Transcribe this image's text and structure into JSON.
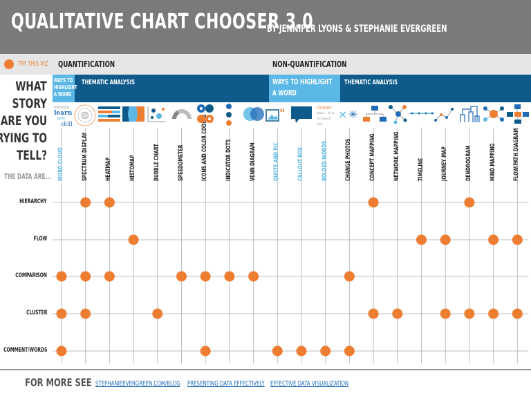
{
  "header": {
    "title": "QUALITATIVE CHART CHOOSER 3.0",
    "subtitle": "BY JENNIFER LYONS & STEPHANIE EVERGREEN"
  },
  "legend": {
    "label": "TRY THIS VIZ"
  },
  "sections": {
    "quant": "QUANTIFICATION",
    "nonquant": "NON-QUANTIFICATION"
  },
  "bands": {
    "ways1": "WAYS TO HIGHLIGHT A WORD",
    "thematic1": "THEMATIC ANALYSIS",
    "ways2": "WAYS TO HIGHLIGHT A WORD",
    "thematic2": "THEMATIC ANALYSIS"
  },
  "question": [
    "WHAT",
    "STORY",
    "ARE YOU",
    "TRYING TO",
    "TELL?"
  ],
  "data_are": "THE DATA ARE...",
  "icon_texts": {
    "wordcloud": [
      "elevate",
      "learn",
      "new",
      "skill"
    ],
    "bolded": [
      "clover",
      "data.. It is",
      "so much",
      "fun"
    ]
  },
  "columns": [
    {
      "label": "WORD CLOUD",
      "color": "#5bb8e6"
    },
    {
      "label": "SPECTRUM DISPLAY",
      "color": "#222222"
    },
    {
      "label": "HEATMAP",
      "color": "#222222"
    },
    {
      "label": "HISTOMAP",
      "color": "#222222"
    },
    {
      "label": "BUBBLE CHART",
      "color": "#222222"
    },
    {
      "label": "SPEEDOMETER",
      "color": "#222222"
    },
    {
      "label": "ICONS AND COLOR CODING",
      "color": "#222222"
    },
    {
      "label": "INDICATOR DOTS",
      "color": "#222222"
    },
    {
      "label": "VENN DIAGRAM",
      "color": "#222222"
    },
    {
      "label": "QUOTE AND PIC",
      "color": "#5bb8e6"
    },
    {
      "label": "CALLOUT BOX",
      "color": "#5bb8e6"
    },
    {
      "label": "BOLDED WORDS",
      "color": "#5bb8e6"
    },
    {
      "label": "CHANGE PHOTOS",
      "color": "#222222"
    },
    {
      "label": "CONCEPT MAPPING",
      "color": "#222222"
    },
    {
      "label": "NETWORK MAPPING",
      "color": "#222222"
    },
    {
      "label": "TIMELINE",
      "color": "#222222"
    },
    {
      "label": "JOURNEY MAP",
      "color": "#222222"
    },
    {
      "label": "DENDROGRAM",
      "color": "#222222"
    },
    {
      "label": "MIND MAPPING",
      "color": "#222222"
    },
    {
      "label": "FLOW/PATH DIAGRAM",
      "color": "#222222"
    }
  ],
  "rows": [
    {
      "label": "HIERARCHY",
      "cols": [
        1,
        2,
        13,
        17
      ]
    },
    {
      "label": "FLOW",
      "cols": [
        3,
        15,
        16,
        18,
        19
      ]
    },
    {
      "label": "COMPARISON",
      "cols": [
        0,
        1,
        2,
        5,
        6,
        7,
        8,
        12
      ]
    },
    {
      "label": "CLUSTER",
      "cols": [
        0,
        1,
        4,
        13,
        14,
        16,
        17,
        18,
        19
      ]
    },
    {
      "label": "COMMENT/WORDS",
      "cols": [
        0,
        6,
        9,
        10,
        11,
        12
      ]
    }
  ],
  "colors": {
    "dot": "#ed7d31",
    "header": "#7a7a7a",
    "light_blue": "#5bb8e6",
    "dark_blue": "#0e5a8a",
    "grid": "#bdbdbd",
    "link": "#1f6bb5"
  },
  "footer": {
    "label": "FOR MORE SEE",
    "links": [
      "STEPHANIEEVERGREEN.COM/BLOG",
      "PRESENTING DATA EFFECTIVELY",
      "EFFECTIVE DATA VISUALIZATION"
    ]
  }
}
